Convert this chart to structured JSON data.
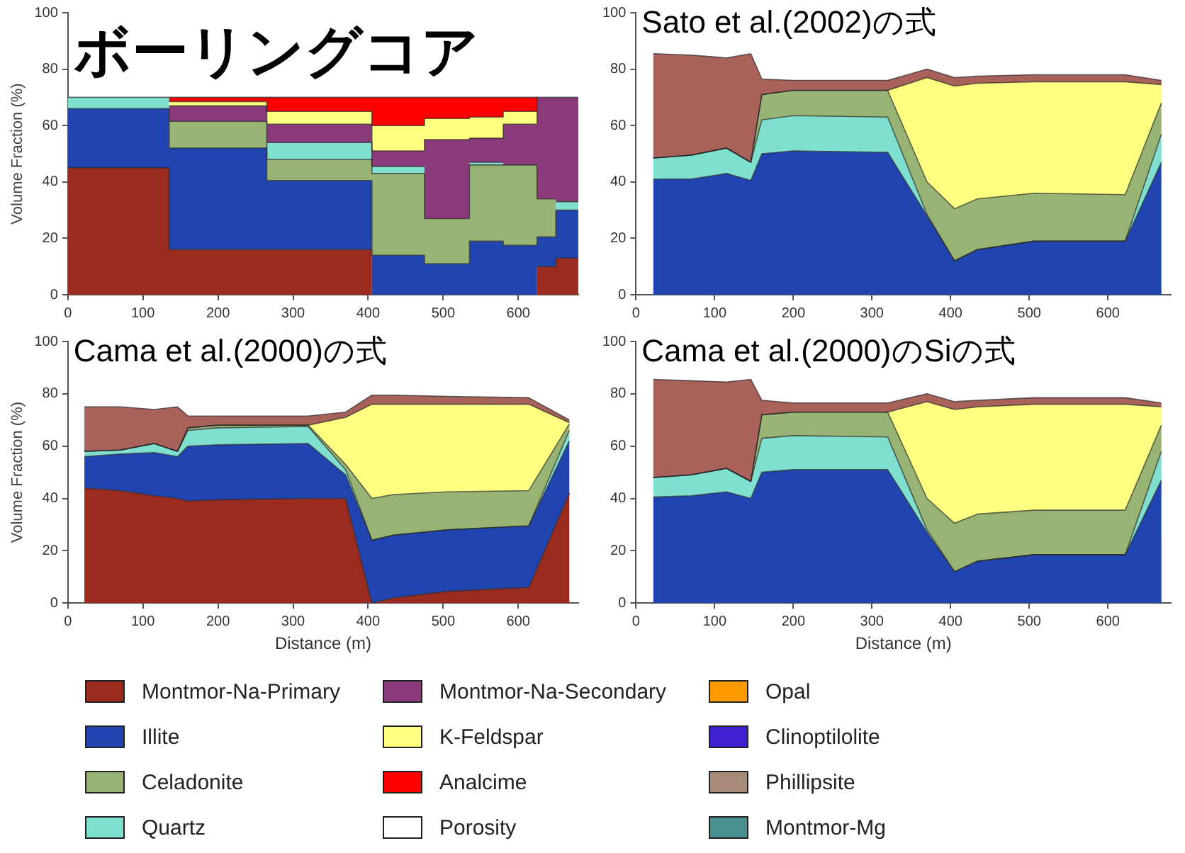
{
  "chart_data": [
    {
      "type": "area",
      "title": "ボーリングコア",
      "ylabel": "Volume Fraction (%)",
      "stacked": true,
      "legend": "bottom",
      "grid": false,
      "xlim": [
        0,
        680
      ],
      "xticks": [
        0,
        100,
        200,
        300,
        400,
        500,
        600
      ],
      "ylim": [
        0,
        100
      ],
      "yticks": [
        0,
        20,
        40,
        60,
        80,
        100
      ],
      "x": [
        0,
        135,
        135,
        265,
        265,
        405,
        405,
        475,
        475,
        535,
        535,
        580,
        580,
        625,
        625,
        650,
        650,
        680
      ],
      "series": [
        {
          "name": "Montmor-Na-Primary",
          "color": "#9b2a1f",
          "values": [
            45,
            45,
            16,
            16,
            16,
            16,
            null,
            null,
            null,
            null,
            null,
            null,
            null,
            null,
            10,
            10,
            13,
            13
          ]
        },
        {
          "name": "Illite",
          "color": "#2044b0",
          "values": [
            21,
            21,
            36,
            36,
            24.5,
            24.5,
            14,
            14,
            11,
            11,
            19,
            19,
            17.5,
            17.5,
            10.5,
            10.5,
            17,
            17
          ]
        },
        {
          "name": "Celadonite",
          "color": "#98b474",
          "values": [
            null,
            null,
            9.5,
            9.5,
            7.5,
            7.5,
            29,
            29,
            16,
            16,
            27,
            27,
            28.5,
            28.5,
            13.5,
            13.5,
            null,
            null
          ]
        },
        {
          "name": "Quartz",
          "color": "#80e0d0",
          "values": [
            4,
            4,
            null,
            null,
            6,
            6,
            2.5,
            2.5,
            null,
            null,
            1,
            1,
            null,
            null,
            null,
            null,
            3,
            3
          ]
        },
        {
          "name": "Montmor-Na-Secondary",
          "color": "#8a3a7a",
          "values": [
            null,
            null,
            5.5,
            5.5,
            6.5,
            6.5,
            5.5,
            5.5,
            28,
            28,
            8.5,
            8.5,
            14.5,
            14.5,
            36,
            36,
            37,
            37
          ]
        },
        {
          "name": "K-Feldspar",
          "color": "#ffff80",
          "values": [
            null,
            null,
            1.5,
            1.5,
            4.5,
            4.5,
            9,
            9,
            7.5,
            7.5,
            7.5,
            7.5,
            4.5,
            4.5,
            null,
            null,
            null,
            null
          ]
        },
        {
          "name": "Analcime",
          "color": "#ff0000",
          "values": [
            null,
            null,
            1.5,
            1.5,
            5,
            5,
            10,
            10,
            7.5,
            7.5,
            7,
            7,
            5,
            5,
            null,
            null,
            null,
            null
          ]
        },
        {
          "name": "Porosity",
          "color": "#ffffff",
          "values": [
            null,
            null,
            null,
            null,
            null,
            null,
            null,
            null,
            null,
            null,
            null,
            null,
            null,
            null,
            null,
            null,
            null,
            null
          ]
        },
        {
          "name": "Opal",
          "color": "#ff9900",
          "values": [
            null,
            null,
            null,
            null,
            null,
            null,
            null,
            null,
            null,
            null,
            null,
            null,
            null,
            null,
            null,
            null,
            null,
            null
          ]
        },
        {
          "name": "Clinoptilolite",
          "color": "#4020d0",
          "values": [
            null,
            null,
            null,
            null,
            null,
            null,
            null,
            null,
            null,
            null,
            null,
            null,
            null,
            null,
            null,
            null,
            null,
            null
          ]
        },
        {
          "name": "Phillipsite",
          "color": "#a88a78",
          "values": [
            null,
            null,
            null,
            null,
            null,
            null,
            null,
            null,
            null,
            null,
            null,
            null,
            null,
            null,
            null,
            null,
            null,
            null
          ]
        },
        {
          "name": "Montmor-Mg",
          "color": "#4a9090",
          "values": [
            null,
            null,
            null,
            null,
            null,
            null,
            null,
            null,
            null,
            null,
            null,
            null,
            null,
            null,
            null,
            null,
            null,
            null
          ]
        }
      ]
    },
    {
      "type": "area",
      "title": "Sato et al.(2002)の式",
      "stacked": true,
      "grid": false,
      "xlim": [
        0,
        680
      ],
      "xticks": [
        0,
        100,
        200,
        300,
        400,
        500,
        600
      ],
      "ylim": [
        0,
        100
      ],
      "yticks": [
        0,
        20,
        40,
        60,
        80,
        100
      ],
      "x": [
        22,
        70,
        115,
        146,
        160,
        200,
        320,
        370,
        405,
        434,
        506,
        622,
        668
      ],
      "series": [
        {
          "color": "#2044b0",
          "values": [
            41,
            41,
            43,
            40.5,
            50,
            51,
            50.5,
            28,
            12,
            16,
            19,
            19,
            47
          ]
        },
        {
          "color": "#80e0d0",
          "values": [
            7.5,
            8.5,
            9,
            6.5,
            12,
            12.5,
            12.5,
            0.5,
            0,
            0,
            0,
            0,
            10
          ]
        },
        {
          "color": "#98b474",
          "values": [
            0,
            0,
            0,
            0,
            9,
            9,
            9.5,
            11.5,
            18.5,
            18,
            17,
            16.5,
            11
          ]
        },
        {
          "color": "#ffff80",
          "values": [
            0,
            0,
            0,
            0,
            0,
            0,
            0,
            37,
            43.5,
            41,
            39.5,
            40,
            6.5
          ]
        },
        {
          "color": "#a8625a",
          "values": [
            37,
            35.5,
            32,
            38.5,
            5.5,
            3.5,
            3.5,
            3,
            3,
            2.5,
            2.5,
            2.5,
            1.5
          ]
        }
      ]
    },
    {
      "type": "area",
      "title": "Cama et al.(2000)の式",
      "xlabel": "Distance (m)",
      "ylabel": "Volume Fraction (%)",
      "stacked": true,
      "grid": false,
      "xlim": [
        0,
        680
      ],
      "xticks": [
        0,
        100,
        200,
        300,
        400,
        500,
        600
      ],
      "ylim": [
        0,
        100
      ],
      "yticks": [
        0,
        20,
        40,
        60,
        80,
        100
      ],
      "x": [
        22,
        70,
        115,
        146,
        160,
        200,
        320,
        370,
        405,
        434,
        506,
        614,
        668
      ],
      "series": [
        {
          "color": "#9b2a1f",
          "values": [
            44,
            43,
            41,
            40,
            39,
            39.5,
            40,
            40,
            0,
            2,
            4.5,
            6,
            42
          ]
        },
        {
          "color": "#2044b0",
          "values": [
            12,
            14,
            16.5,
            16,
            21,
            21,
            21,
            9,
            24,
            24,
            23.5,
            23.5,
            20
          ]
        },
        {
          "color": "#80e0d0",
          "values": [
            2,
            1.5,
            3.5,
            2,
            6,
            6.5,
            6.5,
            2,
            0,
            0,
            0,
            0,
            4
          ]
        },
        {
          "color": "#98b474",
          "values": [
            0,
            0,
            0,
            0,
            1,
            1,
            0.5,
            2,
            16,
            15.5,
            14.5,
            13.5,
            2.5
          ]
        },
        {
          "color": "#ffff80",
          "values": [
            0,
            0,
            0,
            0,
            0,
            0,
            0,
            18,
            36,
            34.5,
            33.5,
            33,
            0.5
          ]
        },
        {
          "color": "#a8625a",
          "values": [
            17,
            16.5,
            13,
            17,
            4.5,
            3.5,
            3.5,
            2,
            3.5,
            3.5,
            3,
            2.5,
            1
          ]
        }
      ]
    },
    {
      "type": "area",
      "title": "Cama et al.(2000)のSiの式",
      "xlabel": "Distance (m)",
      "stacked": true,
      "grid": false,
      "xlim": [
        0,
        680
      ],
      "xticks": [
        0,
        100,
        200,
        300,
        400,
        500,
        600
      ],
      "ylim": [
        0,
        100
      ],
      "yticks": [
        0,
        20,
        40,
        60,
        80,
        100
      ],
      "x": [
        22,
        70,
        115,
        146,
        160,
        200,
        320,
        370,
        405,
        434,
        506,
        622,
        668
      ],
      "series": [
        {
          "color": "#2044b0",
          "values": [
            40.5,
            41,
            42.5,
            40,
            50,
            51,
            51,
            27,
            12,
            16,
            18.5,
            18.5,
            47
          ]
        },
        {
          "color": "#80e0d0",
          "values": [
            7.5,
            8,
            9,
            6.5,
            13,
            13,
            12.5,
            1,
            0,
            0,
            0,
            0,
            11
          ]
        },
        {
          "color": "#98b474",
          "values": [
            0,
            0,
            0,
            0,
            9,
            9,
            9.5,
            12,
            18.5,
            18,
            17,
            17,
            10
          ]
        },
        {
          "color": "#ffff80",
          "values": [
            0,
            0,
            0,
            0,
            0,
            0,
            0,
            37,
            43.5,
            41,
            40.5,
            40.5,
            7
          ]
        },
        {
          "color": "#a8625a",
          "values": [
            37.5,
            36,
            33,
            39,
            5.5,
            3.5,
            3.5,
            3,
            3,
            2.5,
            2.5,
            2.5,
            1.5
          ]
        }
      ]
    }
  ]
}
